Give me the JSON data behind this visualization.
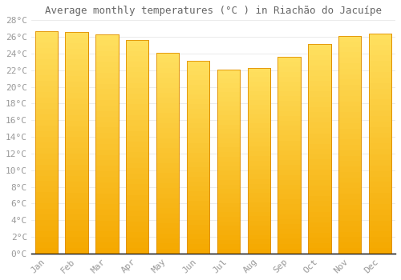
{
  "title": "Average monthly temperatures (°C ) in Riachão do Jacuípe",
  "months": [
    "Jan",
    "Feb",
    "Mar",
    "Apr",
    "May",
    "Jun",
    "Jul",
    "Aug",
    "Sep",
    "Oct",
    "Nov",
    "Dec"
  ],
  "values": [
    26.7,
    26.6,
    26.3,
    25.6,
    24.1,
    23.1,
    22.1,
    22.3,
    23.6,
    25.1,
    26.1,
    26.4
  ],
  "bar_color_bottom": "#F5A800",
  "bar_color_top": "#FFE060",
  "bar_edge_color": "#E09000",
  "ylim": [
    0,
    28
  ],
  "ytick_step": 2,
  "background_color": "#ffffff",
  "grid_color": "#e8e8e8",
  "title_fontsize": 9,
  "tick_fontsize": 8,
  "font_color": "#999999",
  "title_color": "#666666"
}
